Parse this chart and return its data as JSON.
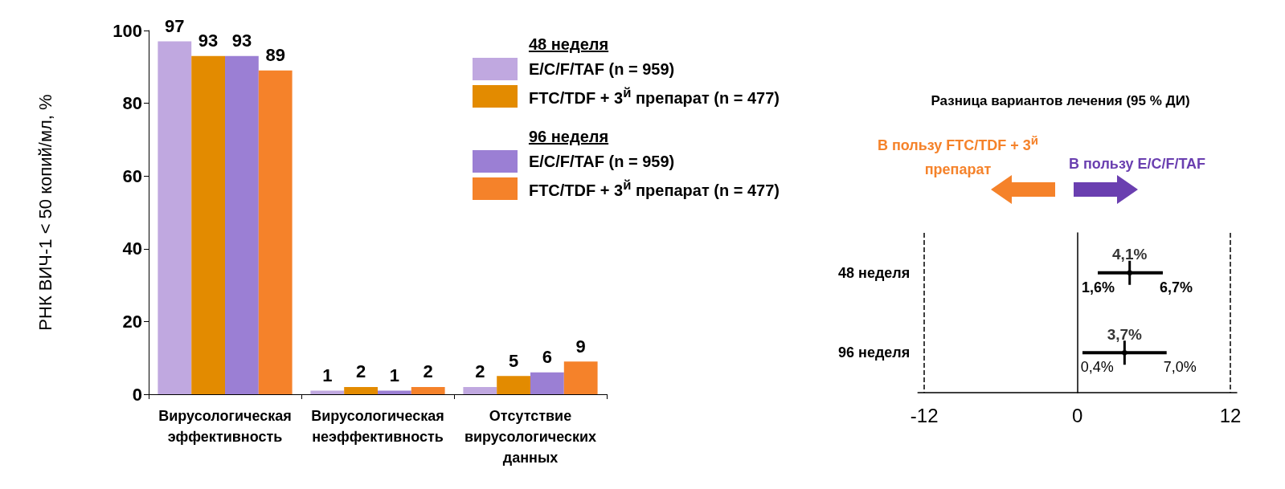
{
  "chart_data": [
    {
      "type": "bar",
      "ylabel": "РНК ВИЧ-1 < 50 копий/мл, %",
      "categories": [
        "Вирусологическая эффективность",
        "Вирусологическая неэффективность",
        "Отсутствие вирусологических данных"
      ],
      "series": [
        {
          "name": "E/C/F/TAF (n = 959)",
          "color": "#c0a8e0",
          "values": [
            97,
            1,
            2
          ]
        },
        {
          "name": "FTC/TDF + 3$^{й}$ препарат (n = 477)",
          "color": "#e38b00",
          "values": [
            93,
            2,
            5
          ]
        },
        {
          "name": "E/C/F/TAF (n = 959)",
          "color": "#9b7fd4",
          "values": [
            93,
            1,
            6
          ]
        },
        {
          "name": "FTC/TDF + 3$^{й}$ препарат (n = 477)",
          "color": "#f5822a",
          "values": [
            89,
            2,
            9
          ]
        }
      ],
      "annotations": [
        "48 неделя",
        "96 неделя"
      ],
      "ylim": [
        0,
        100
      ],
      "yticks": [
        0,
        20,
        40,
        60,
        80,
        100
      ],
      "data_labels": true,
      "grid": false,
      "legend": "top right"
    },
    {
      "type": "scatter",
      "orientation": "horizontal",
      "title": "Разница вариантов лечения (95 % ДИ)",
      "categories": [
        "48 неделя",
        "96 неделя"
      ],
      "series": [
        {
          "color": "#000000",
          "values": [
            4.1,
            3.7
          ],
          "errors": [
            [
              1.6,
              6.7
            ],
            [
              0.4,
              7.0
            ]
          ],
          "value_labels": [
            "4,1%",
            "3,7%"
          ]
        }
      ],
      "xlim": [
        -12.5,
        12.5
      ],
      "xticks": [
        -12,
        0,
        12
      ],
      "ref_lines": [
        {
          "axis": "x",
          "value": -12,
          "line_style": "dashed"
        },
        {
          "axis": "x",
          "value": 12,
          "line_style": "dashed"
        }
      ],
      "annotations": [
        "В пользу FTC/TDF + 3$^{й}$ препарат",
        "В пользу E/C/F/TAF",
        "1,6%",
        "6,7%",
        "0,4%",
        "7,0%"
      ],
      "grid": false
    }
  ]
}
